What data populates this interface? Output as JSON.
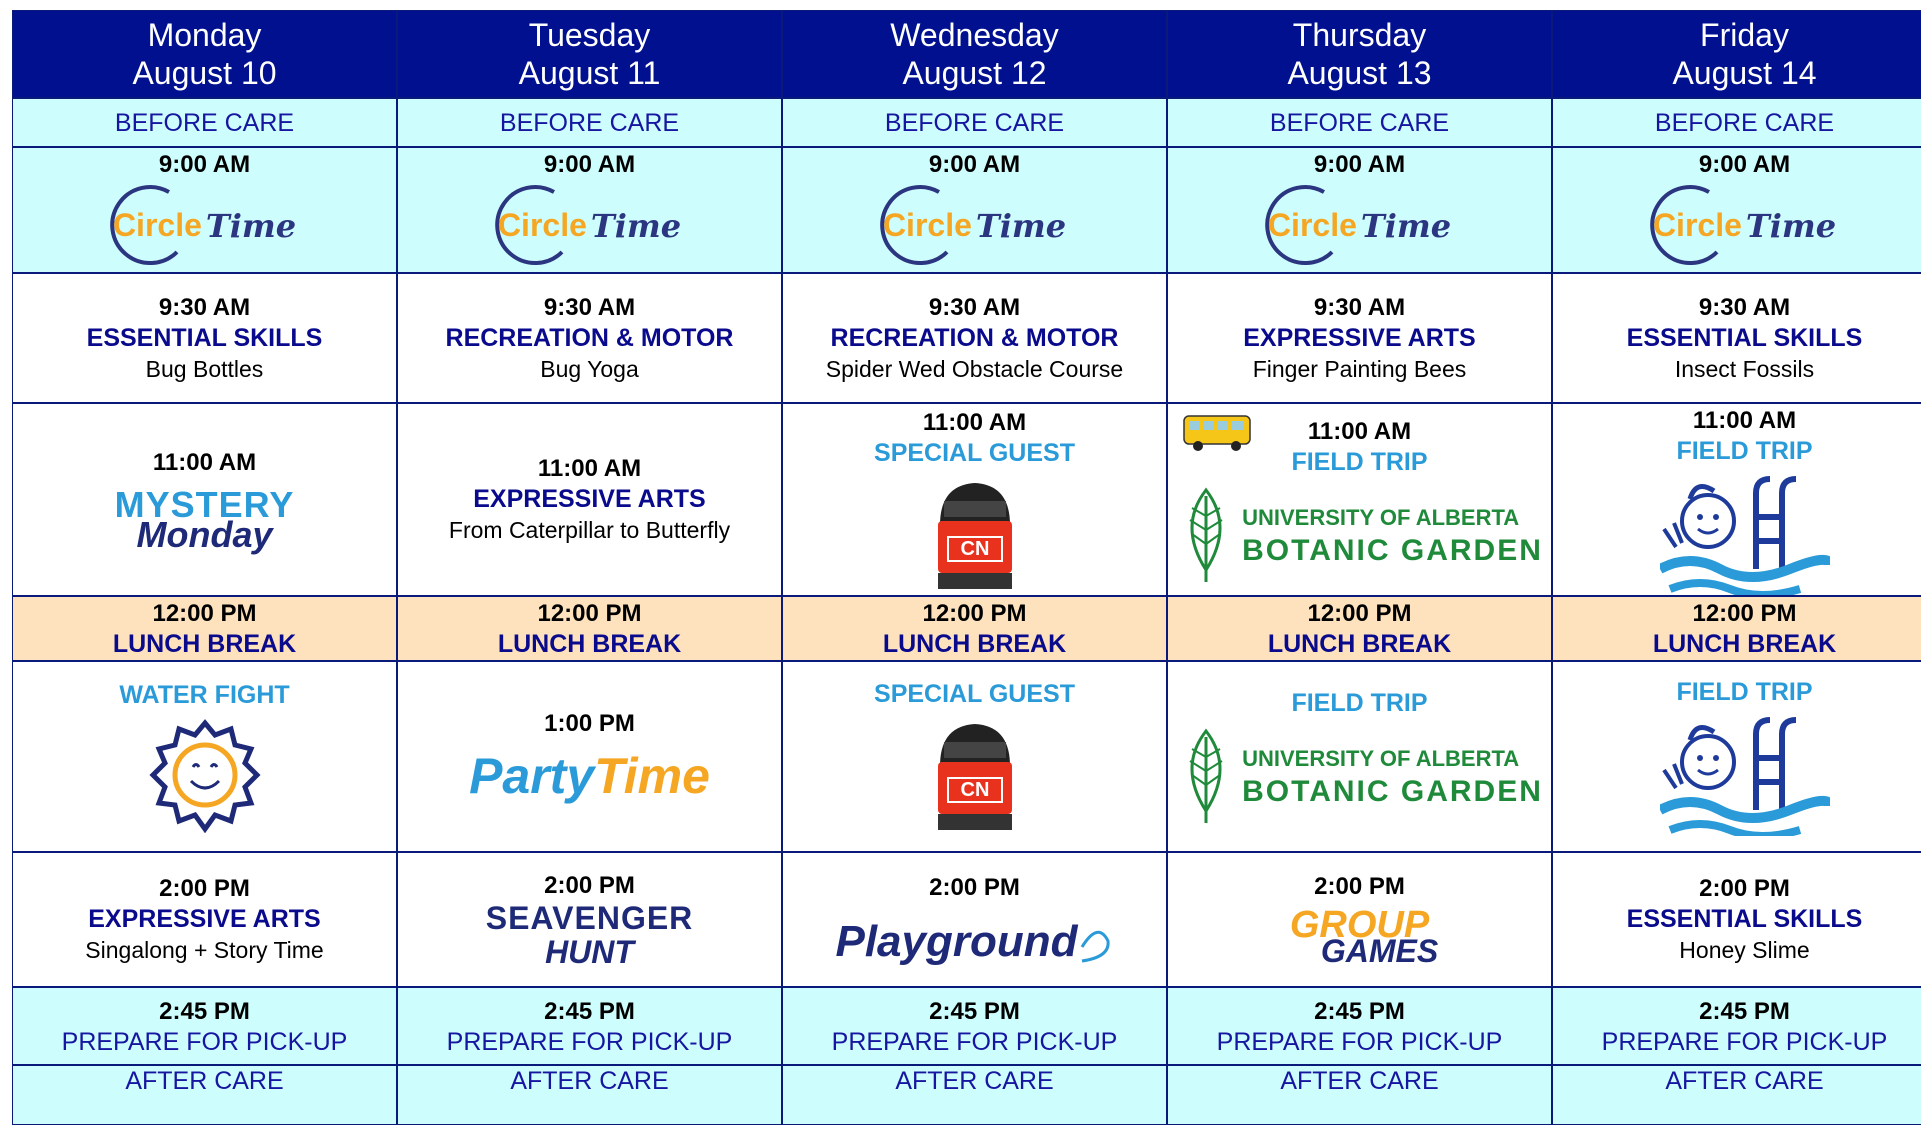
{
  "days": [
    {
      "day": "Monday",
      "date": "August 10"
    },
    {
      "day": "Tuesday",
      "date": "August 11"
    },
    {
      "day": "Wednesday",
      "date": "August 12"
    },
    {
      "day": "Thursday",
      "date": "August 13"
    },
    {
      "day": "Friday",
      "date": "August 14"
    }
  ],
  "before_care": [
    "BEFORE CARE",
    "BEFORE CARE",
    "BEFORE CARE",
    "BEFORE CARE",
    "BEFORE CARE"
  ],
  "circle_time": [
    {
      "time": "9:00 AM",
      "logo": [
        "Circle",
        "Time"
      ]
    },
    {
      "time": "9:00 AM",
      "logo": [
        "Circle",
        "Time"
      ]
    },
    {
      "time": "9:00 AM",
      "logo": [
        "Circle",
        "Time"
      ]
    },
    {
      "time": "9:00 AM",
      "logo": [
        "Circle",
        "Time"
      ]
    },
    {
      "time": "9:00 AM",
      "logo": [
        "Circle",
        "Time"
      ]
    }
  ],
  "morning": [
    {
      "time": "9:30 AM",
      "category": "ESSENTIAL SKILLS",
      "activity": "Bug Bottles"
    },
    {
      "time": "9:30 AM",
      "category": "RECREATION & MOTOR",
      "activity": "Bug Yoga"
    },
    {
      "time": "9:30 AM",
      "category": "RECREATION & MOTOR",
      "activity": "Spider Wed Obstacle Course"
    },
    {
      "time": "9:30 AM",
      "category": "EXPRESSIVE ARTS",
      "activity": "Finger Painting Bees"
    },
    {
      "time": "9:30 AM",
      "category": "ESSENTIAL SKILLS",
      "activity": "Insect Fossils"
    }
  ],
  "late_morning": [
    {
      "time": "11:00 AM",
      "logo": [
        "MYSTERY",
        "Monday"
      ]
    },
    {
      "time": "11:00 AM",
      "category": "EXPRESSIVE ARTS",
      "activity": "From Caterpillar to Butterfly"
    },
    {
      "time": "11:00 AM",
      "event": "SPECIAL GUEST",
      "logo": [
        "CN"
      ]
    },
    {
      "time": "11:00 AM",
      "event": "FIELD TRIP",
      "logo": [
        "UNIVERSITY OF ALBERTA",
        "BOTANIC GARDEN"
      ]
    },
    {
      "time": "11:00 AM",
      "event": "FIELD TRIP"
    }
  ],
  "lunch": [
    {
      "time": "12:00 PM",
      "label": "LUNCH BREAK"
    },
    {
      "time": "12:00 PM",
      "label": "LUNCH BREAK"
    },
    {
      "time": "12:00 PM",
      "label": "LUNCH BREAK"
    },
    {
      "time": "12:00 PM",
      "label": "LUNCH BREAK"
    },
    {
      "time": "12:00 PM",
      "label": "LUNCH BREAK"
    }
  ],
  "afternoon": [
    {
      "event": "WATER FIGHT"
    },
    {
      "time": "1:00 PM",
      "logo": [
        "Party",
        "Time"
      ]
    },
    {
      "event": "SPECIAL GUEST",
      "logo": [
        "CN"
      ]
    },
    {
      "event": "FIELD TRIP",
      "logo": [
        "UNIVERSITY OF ALBERTA",
        "BOTANIC GARDEN"
      ]
    },
    {
      "event": "FIELD TRIP"
    }
  ],
  "late_afternoon": [
    {
      "time": "2:00 PM",
      "category": "EXPRESSIVE ARTS",
      "activity": "Singalong + Story Time"
    },
    {
      "time": "2:00 PM",
      "logo": [
        "SEAVENGER",
        "HUNT"
      ]
    },
    {
      "time": "2:00 PM",
      "logo": [
        "Playground"
      ]
    },
    {
      "time": "2:00 PM",
      "logo": [
        "GROUP",
        "GAMES"
      ]
    },
    {
      "time": "2:00 PM",
      "category": "ESSENTIAL SKILLS",
      "activity": "Honey Slime"
    }
  ],
  "pickup": [
    {
      "time": "2:45 PM",
      "label": "PREPARE FOR PICK-UP"
    },
    {
      "time": "2:45 PM",
      "label": "PREPARE FOR PICK-UP"
    },
    {
      "time": "2:45 PM",
      "label": "PREPARE FOR PICK-UP"
    },
    {
      "time": "2:45 PM",
      "label": "PREPARE FOR PICK-UP"
    },
    {
      "time": "2:45 PM",
      "label": "PREPARE FOR PICK-UP"
    }
  ],
  "after_care": [
    "AFTER CARE",
    "AFTER CARE",
    "AFTER CARE",
    "AFTER CARE",
    "AFTER CARE"
  ]
}
